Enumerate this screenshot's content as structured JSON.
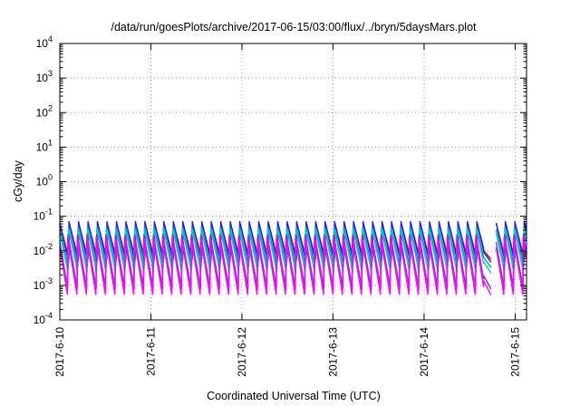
{
  "chart_data": {
    "type": "line",
    "title": "/data/run/goesPlots/archive/2017-06-15/03:00/flux/../bryn/5daysMars.plot",
    "xlabel": "Coordinated Universal Time (UTC)",
    "ylabel": "cGy/day",
    "y_scale": "log",
    "ylim": [
      0.0001,
      10000
    ],
    "xlim": [
      "2017-06-10T00:00",
      "2017-06-15T03:00"
    ],
    "x_ticks": [
      "2017-6-10",
      "2017-6-11",
      "2017-6-12",
      "2017-6-13",
      "2017-6-14",
      "2017-6-15"
    ],
    "y_ticks": [
      {
        "base": "10",
        "exp": "-4"
      },
      {
        "base": "10",
        "exp": "-3"
      },
      {
        "base": "10",
        "exp": "-2"
      },
      {
        "base": "10",
        "exp": "-1"
      },
      {
        "base": "10",
        "exp": "0"
      },
      {
        "base": "10",
        "exp": "1"
      },
      {
        "base": "10",
        "exp": "2"
      },
      {
        "base": "10",
        "exp": "3"
      },
      {
        "base": "10",
        "exp": "4"
      }
    ],
    "grid": true,
    "legend": "none",
    "sawtooth_period_hours": 2.5,
    "gap": {
      "start": "2017-06-14T17:45",
      "end": "2017-06-14T19:00"
    },
    "series": [
      {
        "color": "#ff0000",
        "peak": 0.062,
        "trough": 0.0055
      },
      {
        "color": "#1a1aff",
        "peak": 0.07,
        "trough": 0.0045
      },
      {
        "color": "#00a0a0",
        "peak": 0.05,
        "trough": 0.0032
      },
      {
        "color": "#00d0d0",
        "peak": 0.045,
        "trough": 0.0022
      },
      {
        "color": "#8a2be2",
        "peak": 0.03,
        "trough": 0.00075
      },
      {
        "color": "#ff00ff",
        "peak": 0.025,
        "trough": 0.0005
      }
    ]
  }
}
